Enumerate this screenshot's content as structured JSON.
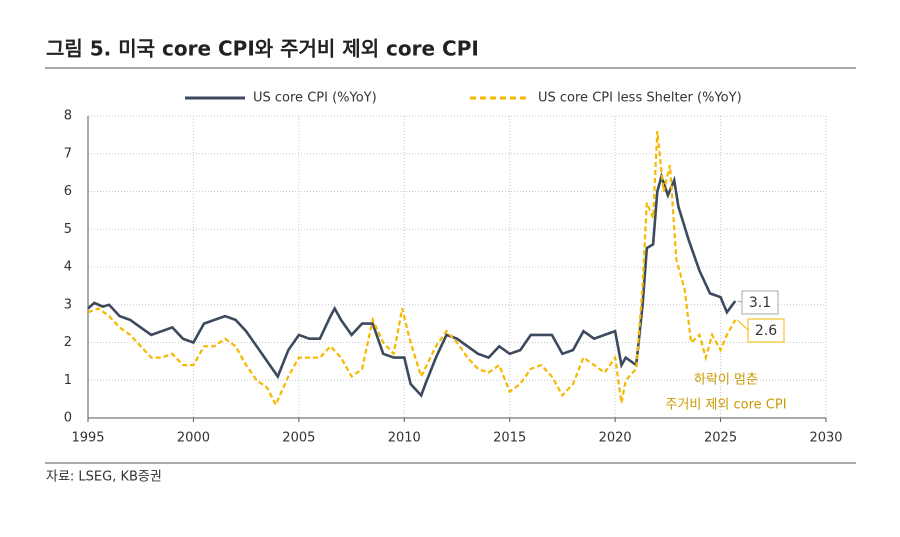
{
  "chart_data": {
    "type": "line",
    "title": "그림 5. 미국 core CPI와 주거비 제외 core CPI",
    "source": "자료: LSEG, KB증권",
    "xlim": [
      1995,
      2030
    ],
    "xticks": [
      1995,
      2000,
      2005,
      2010,
      2015,
      2020,
      2025,
      2030
    ],
    "ylim": [
      0,
      8
    ],
    "yticks": [
      0,
      1,
      2,
      3,
      4,
      5,
      6,
      7,
      8
    ],
    "grid": true,
    "legend": "top",
    "annotations": [
      "하락이 멈춘",
      "주거비 제외 core CPI"
    ],
    "series": [
      {
        "name": "US core CPI (%YoY)",
        "color": "#3d4a5e",
        "dash": false,
        "end_label": "3.1",
        "x": [
          1995,
          1995.3,
          1995.7,
          1996,
          1996.5,
          1997,
          1997.5,
          1998,
          1998.5,
          1999,
          1999.5,
          2000,
          2000.5,
          2001,
          2001.5,
          2002,
          2002.5,
          2003,
          2003.5,
          2004,
          2004.5,
          2005,
          2005.5,
          2006,
          2006.5,
          2006.7,
          2007,
          2007.5,
          2008,
          2008.5,
          2009,
          2009.5,
          2010,
          2010.3,
          2010.8,
          2011,
          2011.5,
          2012,
          2012.5,
          2013,
          2013.5,
          2014,
          2014.5,
          2015,
          2015.5,
          2016,
          2016.5,
          2017,
          2017.5,
          2018,
          2018.5,
          2019,
          2019.5,
          2020,
          2020.3,
          2020.5,
          2021,
          2021.3,
          2021.5,
          2021.8,
          2022,
          2022.2,
          2022.5,
          2022.8,
          2023,
          2023.5,
          2024,
          2024.5,
          2025,
          2025.3,
          2025.7
        ],
        "values": [
          2.9,
          3.05,
          2.95,
          3.0,
          2.7,
          2.6,
          2.4,
          2.2,
          2.3,
          2.4,
          2.1,
          2.0,
          2.5,
          2.6,
          2.7,
          2.6,
          2.3,
          1.9,
          1.5,
          1.1,
          1.8,
          2.2,
          2.1,
          2.1,
          2.7,
          2.9,
          2.6,
          2.2,
          2.5,
          2.5,
          1.7,
          1.6,
          1.6,
          0.9,
          0.6,
          0.9,
          1.6,
          2.2,
          2.1,
          1.9,
          1.7,
          1.6,
          1.9,
          1.7,
          1.8,
          2.2,
          2.2,
          2.2,
          1.7,
          1.8,
          2.3,
          2.1,
          2.2,
          2.3,
          1.4,
          1.6,
          1.4,
          3.0,
          4.5,
          4.6,
          6.0,
          6.4,
          5.9,
          6.3,
          5.6,
          4.7,
          3.9,
          3.3,
          3.2,
          2.8,
          3.1
        ]
      },
      {
        "name": "US core CPI less Shelter (%YoY)",
        "color": "#f5b800",
        "dash": true,
        "end_label": "2.6",
        "x": [
          1995,
          1995.5,
          1996,
          1996.5,
          1997,
          1997.5,
          1998,
          1998.5,
          1999,
          1999.5,
          2000,
          2000.5,
          2001,
          2001.5,
          2002,
          2002.5,
          2003,
          2003.5,
          2003.9,
          2004.5,
          2005,
          2005.5,
          2006,
          2006.5,
          2007,
          2007.5,
          2008,
          2008.5,
          2009,
          2009.5,
          2009.9,
          2010.3,
          2010.8,
          2011.5,
          2012,
          2012.5,
          2013,
          2013.5,
          2014,
          2014.5,
          2015,
          2015.5,
          2016,
          2016.5,
          2017,
          2017.5,
          2018,
          2018.5,
          2019,
          2019.5,
          2020,
          2020.3,
          2020.5,
          2021,
          2021.3,
          2021.5,
          2021.8,
          2022,
          2022.3,
          2022.6,
          2022.9,
          2023.3,
          2023.6,
          2024,
          2024.3,
          2024.6,
          2025,
          2025.3,
          2025.7
        ],
        "values": [
          2.8,
          2.9,
          2.7,
          2.4,
          2.2,
          1.9,
          1.6,
          1.6,
          1.7,
          1.4,
          1.4,
          1.9,
          1.9,
          2.1,
          1.9,
          1.4,
          1.0,
          0.8,
          0.35,
          1.1,
          1.6,
          1.6,
          1.6,
          1.9,
          1.6,
          1.1,
          1.3,
          2.6,
          2.0,
          1.7,
          2.9,
          2.0,
          1.1,
          1.9,
          2.3,
          2.0,
          1.6,
          1.3,
          1.2,
          1.4,
          0.7,
          0.9,
          1.3,
          1.4,
          1.1,
          0.6,
          0.9,
          1.6,
          1.4,
          1.2,
          1.6,
          0.4,
          1.0,
          1.3,
          3.5,
          5.7,
          5.3,
          7.6,
          6.0,
          6.7,
          4.2,
          3.4,
          2.0,
          2.2,
          1.6,
          2.2,
          1.8,
          2.2,
          2.6
        ]
      }
    ]
  }
}
